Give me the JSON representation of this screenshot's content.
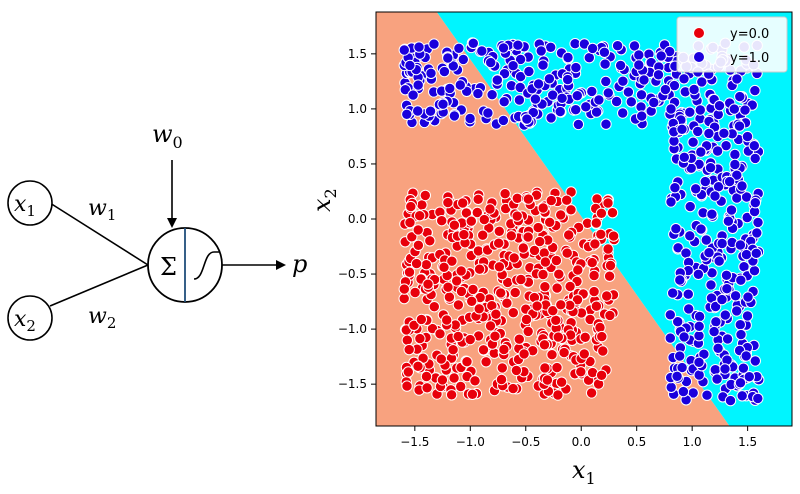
{
  "neuron": {
    "inputs": [
      {
        "sym": "x",
        "sub": "1"
      },
      {
        "sym": "x",
        "sub": "2"
      }
    ],
    "weights": [
      {
        "sym": "w",
        "sub": "1"
      },
      {
        "sym": "w",
        "sub": "2"
      }
    ],
    "bias": {
      "sym": "w",
      "sub": "0"
    },
    "sum_symbol": "Σ",
    "output": "p"
  },
  "chart_data": {
    "type": "scatter",
    "title": "",
    "xlabel": {
      "sym": "x",
      "sub": "1"
    },
    "ylabel": {
      "sym": "x",
      "sub": "2"
    },
    "xlim": [
      -1.85,
      1.9
    ],
    "ylim": [
      -1.88,
      1.88
    ],
    "xticks": [
      -1.5,
      -1.0,
      -0.5,
      0.0,
      0.5,
      1.0,
      1.5
    ],
    "yticks": [
      -1.5,
      -1.0,
      -0.5,
      0.0,
      0.5,
      1.0,
      1.5
    ],
    "grid": false,
    "decision_boundary": {
      "line": "x2 = -1.425*x1 + 0.025",
      "region_below_color": "#f8a27f",
      "region_above_color": "#00f5ff"
    },
    "legend": {
      "placement": "top-right",
      "entries": [
        {
          "label": "y=0.0",
          "color": "#e8000b"
        },
        {
          "label": "y=1.0",
          "color": "#1a00dd"
        }
      ]
    },
    "series": [
      {
        "name": "y=0.0",
        "color": "#e8000b",
        "regions": [
          {
            "x": [
              -1.6,
              0.3
            ],
            "y": [
              -1.6,
              0.25
            ]
          }
        ],
        "approx_count": 540
      },
      {
        "name": "y=1.0",
        "color": "#1a00dd",
        "regions": [
          {
            "x": [
              -1.6,
              1.6
            ],
            "y": [
              0.85,
              1.6
            ]
          },
          {
            "x": [
              0.8,
              1.6
            ],
            "y": [
              -1.65,
              0.9
            ]
          }
        ],
        "approx_count": 640
      }
    ]
  }
}
